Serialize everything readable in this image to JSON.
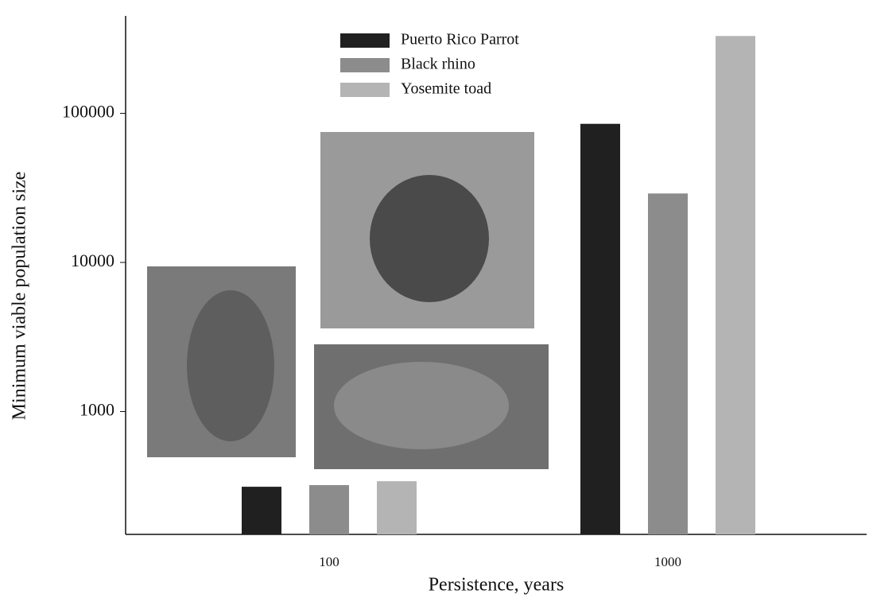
{
  "chart_data": {
    "type": "bar",
    "x_label": "Persistence, years",
    "y_label": "Minimum viable population size",
    "categories": [
      "100",
      "1000"
    ],
    "series": [
      {
        "name": "Puerto Rico Parrot",
        "color": "#202020",
        "values": [
          313,
          85000
        ]
      },
      {
        "name": "Black rhino",
        "color": "#8c8c8c",
        "values": [
          321,
          29000
        ]
      },
      {
        "name": "Yosemite toad",
        "color": "#b4b4b4",
        "values": [
          341,
          330000
        ]
      }
    ],
    "log_scale": true,
    "ylim": [
      150,
      450000
    ],
    "yticks": [
      1000,
      10000,
      100000
    ],
    "legend": "top",
    "grid": false
  }
}
